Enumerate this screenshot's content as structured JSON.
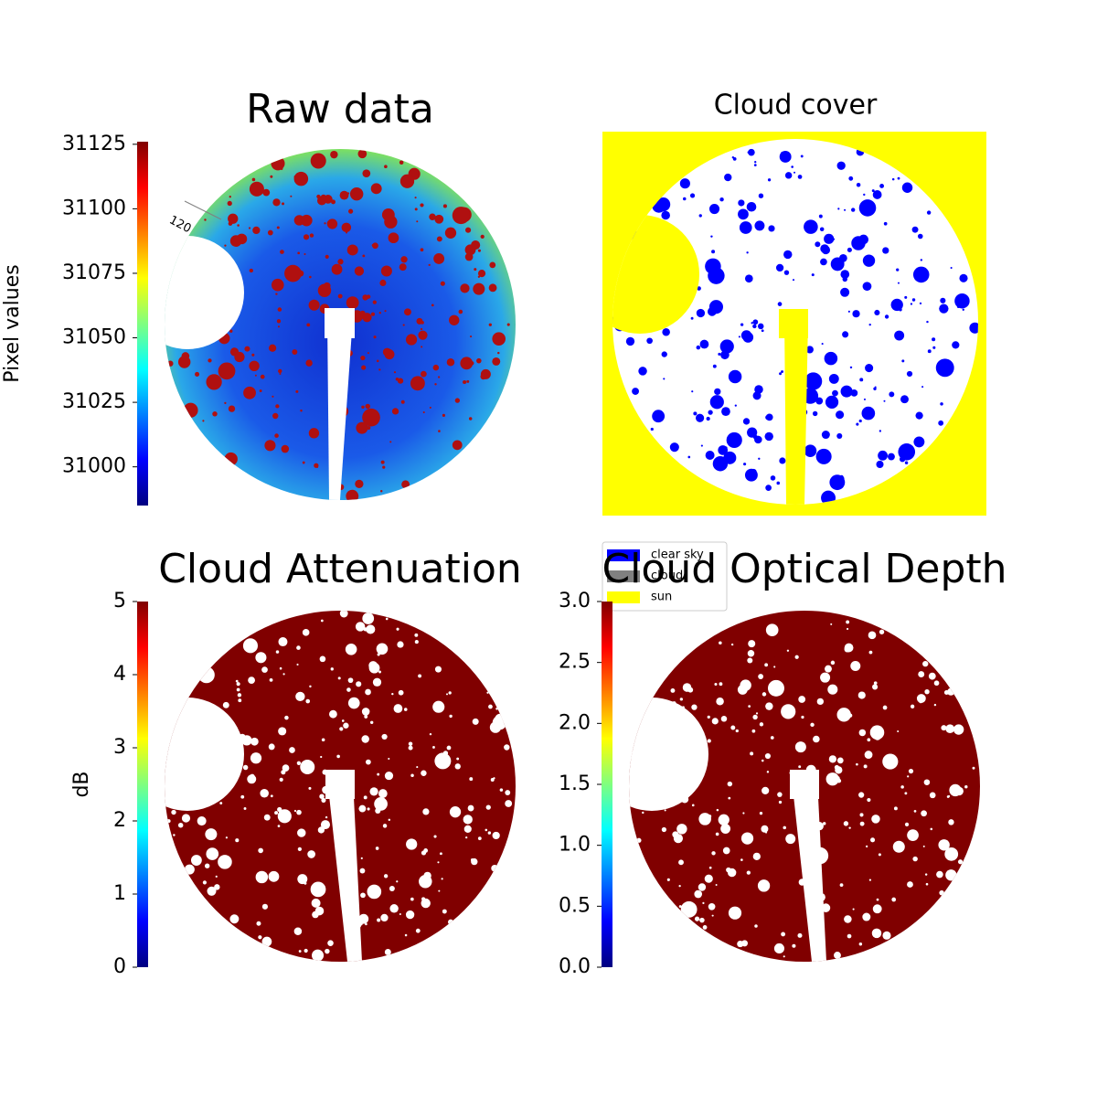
{
  "chart_data": [
    {
      "type": "image",
      "title": "Raw data",
      "annotations": [
        "120"
      ],
      "colorbar": {
        "label": "Pixel values",
        "colormap": "jet",
        "clim": [
          30985,
          31126
        ],
        "ticks": [
          31000,
          31025,
          31050,
          31075,
          31100,
          31125
        ]
      }
    },
    {
      "type": "image",
      "title": "Cloud cover",
      "legend": {
        "entries": [
          {
            "name": "clear sky",
            "color": "#0000ff"
          },
          {
            "name": "cloud",
            "color": "#808080"
          },
          {
            "name": "sun",
            "color": "#ffff00"
          }
        ]
      }
    },
    {
      "type": "image",
      "title": "Cloud Attenuation",
      "colorbar": {
        "label": "dB",
        "colormap": "jet",
        "clim": [
          0,
          5
        ],
        "ticks": [
          0,
          1,
          2,
          3,
          4,
          5
        ]
      }
    },
    {
      "type": "image",
      "title": "Cloud Optical Depth",
      "colorbar": {
        "colormap": "jet",
        "clim": [
          0,
          3
        ],
        "ticks": [
          {
            "value": 0,
            "label": "0.0"
          },
          {
            "value": 0.5,
            "label": "0.5"
          },
          {
            "value": 1,
            "label": "1.0"
          },
          {
            "value": 1.5,
            "label": "1.5"
          },
          {
            "value": 2,
            "label": "2.0"
          },
          {
            "value": 2.5,
            "label": "2.5"
          },
          {
            "value": 3,
            "label": "3.0"
          }
        ]
      }
    }
  ]
}
